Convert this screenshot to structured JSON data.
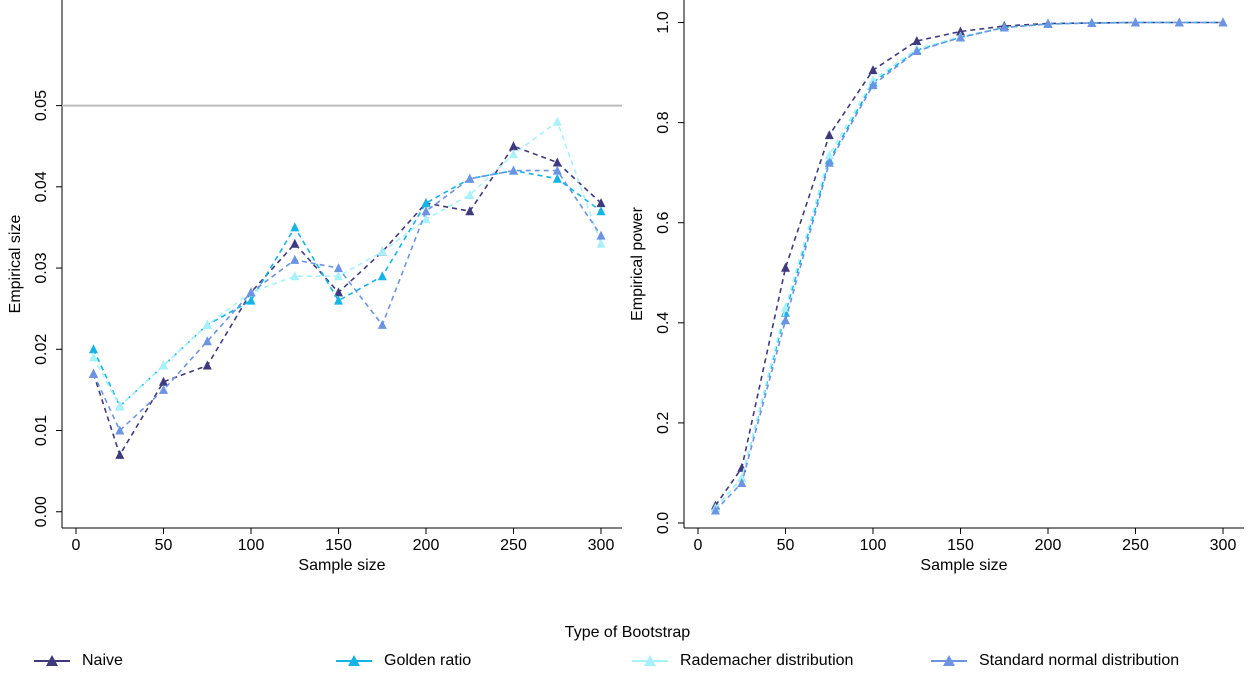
{
  "chart_data": [
    {
      "type": "line",
      "title": "",
      "xlabel": "Sample size",
      "ylabel": "Empirical size",
      "xlim": [
        -8,
        312
      ],
      "ylim": [
        -0.002,
        0.063
      ],
      "xticks": [
        0,
        50,
        100,
        150,
        200,
        250,
        300
      ],
      "xtick_labels": [
        "0",
        "50",
        "100",
        "150",
        "200",
        "250",
        "300"
      ],
      "yticks": [
        0.0,
        0.01,
        0.02,
        0.03,
        0.04,
        0.05
      ],
      "ytick_labels": [
        "0.00",
        "0.01",
        "0.02",
        "0.03",
        "0.04",
        "0.05"
      ],
      "reference_line": 0.05,
      "grid": false,
      "x": [
        10,
        25,
        50,
        75,
        100,
        125,
        150,
        175,
        200,
        225,
        250,
        275,
        300
      ],
      "series": [
        {
          "name": "Naive",
          "values": [
            0.017,
            0.007,
            0.016,
            0.018,
            0.027,
            0.033,
            0.027,
            0.032,
            0.038,
            0.037,
            0.045,
            0.043,
            0.038
          ]
        },
        {
          "name": "Golden ratio",
          "values": [
            0.02,
            0.013,
            0.018,
            0.023,
            0.026,
            0.035,
            0.026,
            0.029,
            0.038,
            0.041,
            0.042,
            0.041,
            0.037
          ]
        },
        {
          "name": "Rademacher distribution",
          "values": [
            0.019,
            0.013,
            0.018,
            0.023,
            0.027,
            0.029,
            0.029,
            0.032,
            0.036,
            0.039,
            0.044,
            0.048,
            0.033
          ]
        },
        {
          "name": "Standard normal distribution",
          "values": [
            0.017,
            0.01,
            0.015,
            0.021,
            0.027,
            0.031,
            0.03,
            0.023,
            0.037,
            0.041,
            0.042,
            0.042,
            0.034
          ]
        }
      ]
    },
    {
      "type": "line",
      "title": "",
      "xlabel": "Sample size",
      "ylabel": "Empirical power",
      "xlim": [
        -8,
        312
      ],
      "ylim": [
        -0.01,
        1.045
      ],
      "xticks": [
        0,
        50,
        100,
        150,
        200,
        250,
        300
      ],
      "xtick_labels": [
        "0",
        "50",
        "100",
        "150",
        "200",
        "250",
        "300"
      ],
      "yticks": [
        0.0,
        0.2,
        0.4,
        0.6,
        0.8,
        1.0
      ],
      "ytick_labels": [
        "0.0",
        "0.2",
        "0.4",
        "0.6",
        "0.8",
        "1.0"
      ],
      "grid": false,
      "x": [
        10,
        25,
        50,
        75,
        100,
        125,
        150,
        175,
        200,
        225,
        250,
        275,
        300
      ],
      "series": [
        {
          "name": "Naive",
          "values": [
            0.035,
            0.11,
            0.51,
            0.775,
            0.905,
            0.963,
            0.982,
            0.993,
            0.998,
            0.999,
            1.0,
            1.0,
            1.0
          ]
        },
        {
          "name": "Golden ratio",
          "values": [
            0.03,
            0.09,
            0.42,
            0.725,
            0.88,
            0.945,
            0.97,
            0.99,
            0.997,
            0.999,
            1.0,
            1.0,
            1.0
          ]
        },
        {
          "name": "Rademacher distribution",
          "values": [
            0.03,
            0.09,
            0.43,
            0.735,
            0.885,
            0.947,
            0.972,
            0.99,
            0.997,
            0.999,
            1.0,
            1.0,
            1.0
          ]
        },
        {
          "name": "Standard normal distribution",
          "values": [
            0.025,
            0.08,
            0.405,
            0.72,
            0.875,
            0.943,
            0.97,
            0.99,
            0.997,
            0.999,
            1.0,
            1.0,
            1.0
          ]
        }
      ]
    }
  ],
  "legend": {
    "title": "Type of Bootstrap",
    "items": [
      {
        "label": "Naive",
        "color": "#3f3a7d"
      },
      {
        "label": "Golden ratio",
        "color": "#15b4e6"
      },
      {
        "label": "Rademacher distribution",
        "color": "#a8f1fb"
      },
      {
        "label": "Standard normal distribution",
        "color": "#6c94e2"
      }
    ]
  },
  "colors": {
    "reference_line": "#bdbdbd",
    "axis": "#000000"
  }
}
